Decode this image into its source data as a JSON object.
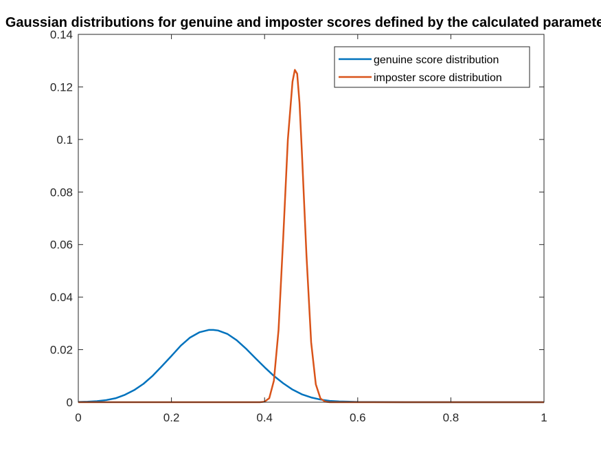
{
  "chart_data": {
    "type": "line",
    "title": "Gaussian distributions for genuine and imposter scores defined by the calculated parameters",
    "xlabel": "",
    "ylabel": "",
    "xlim": [
      0,
      1
    ],
    "ylim": [
      0,
      0.14
    ],
    "x_ticks": [
      "0",
      "0.2",
      "0.4",
      "0.6",
      "0.8",
      "1"
    ],
    "y_ticks": [
      "0",
      "0.02",
      "0.04",
      "0.06",
      "0.08",
      "0.1",
      "0.12",
      "0.14"
    ],
    "grid": false,
    "legend_position": "top-right",
    "series": [
      {
        "name": "genuine score distribution",
        "color": "#0072BD",
        "x": [
          0,
          0.02,
          0.04,
          0.06,
          0.08,
          0.1,
          0.12,
          0.14,
          0.16,
          0.18,
          0.2,
          0.22,
          0.24,
          0.26,
          0.28,
          0.29,
          0.3,
          0.32,
          0.34,
          0.36,
          0.38,
          0.4,
          0.42,
          0.44,
          0.46,
          0.48,
          0.5,
          0.52,
          0.54,
          0.56,
          0.6,
          0.7,
          0.8,
          0.9,
          1.0
        ],
        "y": [
          0.0001,
          0.0002,
          0.0004,
          0.0008,
          0.0015,
          0.0028,
          0.0046,
          0.007,
          0.0101,
          0.0138,
          0.0176,
          0.0215,
          0.0246,
          0.0266,
          0.0275,
          0.0275,
          0.0273,
          0.026,
          0.0236,
          0.0204,
          0.0168,
          0.0133,
          0.01,
          0.0072,
          0.0048,
          0.003,
          0.0018,
          0.001,
          0.0005,
          0.0003,
          0.0001,
          0,
          0,
          0,
          0
        ]
      },
      {
        "name": "imposter score distribution",
        "color": "#D95319",
        "x": [
          0,
          0.1,
          0.2,
          0.3,
          0.39,
          0.4,
          0.41,
          0.42,
          0.43,
          0.44,
          0.45,
          0.46,
          0.465,
          0.47,
          0.475,
          0.48,
          0.49,
          0.5,
          0.51,
          0.52,
          0.53,
          0.54,
          0.6,
          0.7,
          0.8,
          0.9,
          1.0
        ],
        "y": [
          0,
          0,
          0,
          0,
          0,
          0.0002,
          0.0015,
          0.0082,
          0.0275,
          0.0625,
          0.1,
          0.122,
          0.1265,
          0.125,
          0.114,
          0.0956,
          0.0558,
          0.0228,
          0.0068,
          0.0014,
          0.0002,
          0,
          0,
          0,
          0,
          0,
          0
        ]
      }
    ]
  }
}
